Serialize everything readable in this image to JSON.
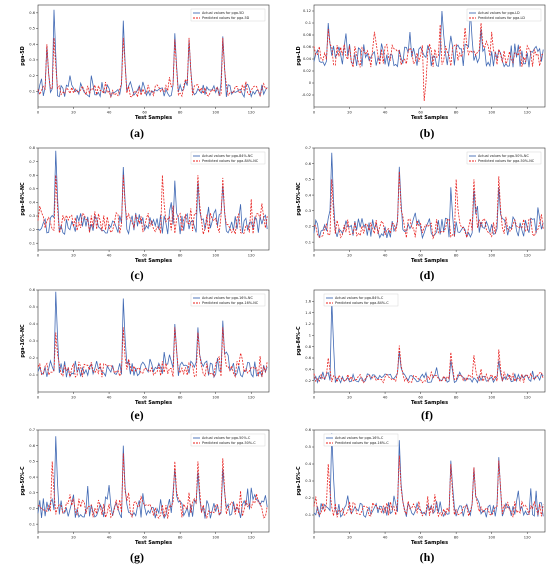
{
  "figure": {
    "captions": [
      "(a)",
      "(b)",
      "(c)",
      "(d)",
      "(e)",
      "(f)",
      "(g)",
      "(h)"
    ]
  },
  "colors": {
    "actual": "#4169b4",
    "predicted": "#e8201e",
    "axis": "#333333"
  },
  "chart_data": [
    {
      "type": "line",
      "caption": "(a)",
      "xlabel": "Test Samples",
      "ylabel": "pga-5D",
      "xlim": [
        0,
        130
      ],
      "ylim": [
        0,
        0.65
      ],
      "xticks": [
        0,
        20,
        40,
        60,
        80,
        100,
        120
      ],
      "yticks": [
        0.1,
        0.2,
        0.3,
        0.4,
        0.5,
        0.6
      ],
      "legend_position": "top-right",
      "series": [
        {
          "name": "Actual values for pga-5D",
          "style": "solid"
        },
        {
          "name": "Predicted values for pga-5D",
          "style": "dashed"
        }
      ],
      "gen": {
        "base": 0.09,
        "amp": 0.05,
        "seed": 11,
        "peaks_actual": [
          [
            5,
            0.39
          ],
          [
            9,
            0.62
          ],
          [
            18,
            0.2
          ],
          [
            30,
            0.2
          ],
          [
            48,
            0.55
          ],
          [
            59,
            0.16
          ],
          [
            77,
            0.47
          ],
          [
            85,
            0.43
          ],
          [
            104,
            0.45
          ],
          [
            117,
            0.14
          ]
        ],
        "peaks_pred": [
          [
            5,
            0.4
          ],
          [
            9,
            0.44
          ],
          [
            48,
            0.44
          ],
          [
            77,
            0.43
          ],
          [
            85,
            0.44
          ],
          [
            104,
            0.44
          ]
        ]
      }
    },
    {
      "type": "line",
      "caption": "(b)",
      "xlabel": "Test Samples",
      "ylabel": "pga-LD",
      "xlim": [
        0,
        130
      ],
      "ylim": [
        -0.04,
        0.13
      ],
      "xticks": [
        0,
        20,
        40,
        60,
        80,
        100,
        120
      ],
      "yticks": [
        -0.02,
        0.0,
        0.02,
        0.04,
        0.06,
        0.08,
        0.1,
        0.12
      ],
      "legend_position": "top-right",
      "series": [
        {
          "name": "Actual values for pga-LD",
          "style": "solid"
        },
        {
          "name": "Predicted values for pga-LD",
          "style": "dashed"
        }
      ],
      "gen": {
        "base": 0.04,
        "amp": 0.025,
        "seed": 23,
        "peaks_actual": [
          [
            8,
            0.1
          ],
          [
            72,
            0.12
          ],
          [
            88,
            0.12
          ],
          [
            94,
            0.09
          ]
        ],
        "peaks_pred": [
          [
            8,
            0.09
          ],
          [
            62,
            -0.03
          ],
          [
            94,
            0.1
          ]
        ]
      }
    },
    {
      "type": "line",
      "caption": "(c)",
      "xlabel": "Test Samples",
      "ylabel": "pga-84%-NC",
      "xlim": [
        0,
        130
      ],
      "ylim": [
        0.05,
        0.8
      ],
      "xticks": [
        0,
        20,
        40,
        60,
        80,
        100,
        120
      ],
      "yticks": [
        0.1,
        0.2,
        0.3,
        0.4,
        0.5,
        0.6,
        0.7,
        0.8
      ],
      "legend_position": "top-right",
      "series": [
        {
          "name": "Actual values for pga-84%-NC",
          "style": "solid"
        },
        {
          "name": "Predicted values for pga-84%-NC",
          "style": "dashed"
        }
      ],
      "gen": {
        "base": 0.22,
        "amp": 0.1,
        "seed": 37,
        "peaks_actual": [
          [
            10,
            0.78
          ],
          [
            48,
            0.66
          ],
          [
            77,
            0.56
          ],
          [
            90,
            0.55
          ],
          [
            104,
            0.52
          ]
        ],
        "peaks_pred": [
          [
            10,
            0.6
          ],
          [
            48,
            0.6
          ],
          [
            70,
            0.6
          ],
          [
            90,
            0.6
          ],
          [
            104,
            0.58
          ]
        ]
      }
    },
    {
      "type": "line",
      "caption": "(d)",
      "xlabel": "Test Samples",
      "ylabel": "pga-50%-NC",
      "xlim": [
        0,
        130
      ],
      "ylim": [
        0.05,
        0.7
      ],
      "xticks": [
        0,
        20,
        40,
        60,
        80,
        100,
        120
      ],
      "yticks": [
        0.1,
        0.2,
        0.3,
        0.4,
        0.5,
        0.6,
        0.7
      ],
      "legend_position": "top-right",
      "series": [
        {
          "name": "Actual values for pga-50%-NC",
          "style": "solid"
        },
        {
          "name": "Predicted values for pga-50%-NC",
          "style": "dashed"
        }
      ],
      "gen": {
        "base": 0.17,
        "amp": 0.08,
        "seed": 41,
        "peaks_actual": [
          [
            10,
            0.67
          ],
          [
            48,
            0.58
          ],
          [
            77,
            0.45
          ],
          [
            90,
            0.43
          ],
          [
            104,
            0.45
          ]
        ],
        "peaks_pred": [
          [
            10,
            0.5
          ],
          [
            48,
            0.55
          ],
          [
            80,
            0.5
          ],
          [
            90,
            0.5
          ],
          [
            104,
            0.52
          ]
        ]
      }
    },
    {
      "type": "line",
      "caption": "(e)",
      "xlabel": "Test Samples",
      "ylabel": "pga-16%-NC",
      "xlim": [
        0,
        130
      ],
      "ylim": [
        0.0,
        0.6
      ],
      "xticks": [
        0,
        20,
        40,
        60,
        80,
        100,
        120
      ],
      "yticks": [
        0.1,
        0.2,
        0.3,
        0.4,
        0.5,
        0.6
      ],
      "legend_position": "top-right",
      "series": [
        {
          "name": "Actual values for pga-16%-NC",
          "style": "solid"
        },
        {
          "name": "Predicted values for pga-16%-NC",
          "style": "dashed"
        }
      ],
      "gen": {
        "base": 0.12,
        "amp": 0.06,
        "seed": 53,
        "peaks_actual": [
          [
            10,
            0.59
          ],
          [
            48,
            0.55
          ],
          [
            77,
            0.4
          ],
          [
            90,
            0.38
          ],
          [
            104,
            0.42
          ]
        ],
        "peaks_pred": [
          [
            10,
            0.35
          ],
          [
            48,
            0.38
          ],
          [
            77,
            0.38
          ],
          [
            90,
            0.35
          ],
          [
            104,
            0.38
          ]
        ]
      }
    },
    {
      "type": "line",
      "caption": "(f)",
      "xlabel": "Test Samples",
      "ylabel": "pga-84%-C",
      "xlim": [
        0,
        130
      ],
      "ylim": [
        0.0,
        1.8
      ],
      "xticks": [
        0,
        20,
        40,
        60,
        80,
        100,
        120
      ],
      "yticks": [
        0.2,
        0.4,
        0.6,
        0.8,
        1.0,
        1.2,
        1.4,
        1.6
      ],
      "legend_position": "top-left",
      "series": [
        {
          "name": "Actual values for pga-84%-C",
          "style": "solid"
        },
        {
          "name": "Predicted values for pga-84%-C",
          "style": "dashed"
        }
      ],
      "gen": {
        "base": 0.22,
        "amp": 0.1,
        "seed": 67,
        "peaks_actual": [
          [
            10,
            1.62
          ],
          [
            48,
            0.72
          ],
          [
            77,
            0.55
          ],
          [
            104,
            0.55
          ]
        ],
        "peaks_pred": [
          [
            8,
            0.6
          ],
          [
            48,
            0.82
          ],
          [
            77,
            0.7
          ],
          [
            90,
            0.65
          ],
          [
            104,
            0.75
          ]
        ]
      }
    },
    {
      "type": "line",
      "caption": "(g)",
      "xlabel": "Test Samples",
      "ylabel": "pga-50%-C",
      "xlim": [
        0,
        130
      ],
      "ylim": [
        0.05,
        0.7
      ],
      "xticks": [
        0,
        20,
        40,
        60,
        80,
        100,
        120
      ],
      "yticks": [
        0.1,
        0.2,
        0.3,
        0.4,
        0.5,
        0.6,
        0.7
      ],
      "legend_position": "top-right",
      "series": [
        {
          "name": "Actual values for pga-50%-C",
          "style": "solid"
        },
        {
          "name": "Predicted values for pga-50%-C",
          "style": "dashed"
        }
      ],
      "gen": {
        "base": 0.18,
        "amp": 0.08,
        "seed": 79,
        "peaks_actual": [
          [
            10,
            0.66
          ],
          [
            48,
            0.6
          ],
          [
            77,
            0.45
          ],
          [
            90,
            0.43
          ],
          [
            104,
            0.45
          ]
        ],
        "peaks_pred": [
          [
            8,
            0.5
          ],
          [
            48,
            0.55
          ],
          [
            77,
            0.5
          ],
          [
            90,
            0.5
          ],
          [
            104,
            0.52
          ]
        ]
      }
    },
    {
      "type": "line",
      "caption": "(h)",
      "xlabel": "Test Samples",
      "ylabel": "pga-16%-C",
      "xlim": [
        0,
        130
      ],
      "ylim": [
        0.0,
        0.6
      ],
      "xticks": [
        0,
        20,
        40,
        60,
        80,
        100,
        120
      ],
      "yticks": [
        0.1,
        0.2,
        0.3,
        0.4,
        0.5,
        0.6
      ],
      "legend_position": "top-left",
      "series": [
        {
          "name": "Actual values for pga-16%-C",
          "style": "solid"
        },
        {
          "name": "Predicted values for pga-16%-C",
          "style": "dashed"
        }
      ],
      "gen": {
        "base": 0.12,
        "amp": 0.06,
        "seed": 91,
        "peaks_actual": [
          [
            10,
            0.58
          ],
          [
            48,
            0.54
          ],
          [
            77,
            0.42
          ],
          [
            90,
            0.38
          ],
          [
            104,
            0.44
          ]
        ],
        "peaks_pred": [
          [
            8,
            0.4
          ],
          [
            48,
            0.45
          ],
          [
            77,
            0.4
          ],
          [
            90,
            0.38
          ],
          [
            104,
            0.42
          ]
        ]
      }
    }
  ]
}
